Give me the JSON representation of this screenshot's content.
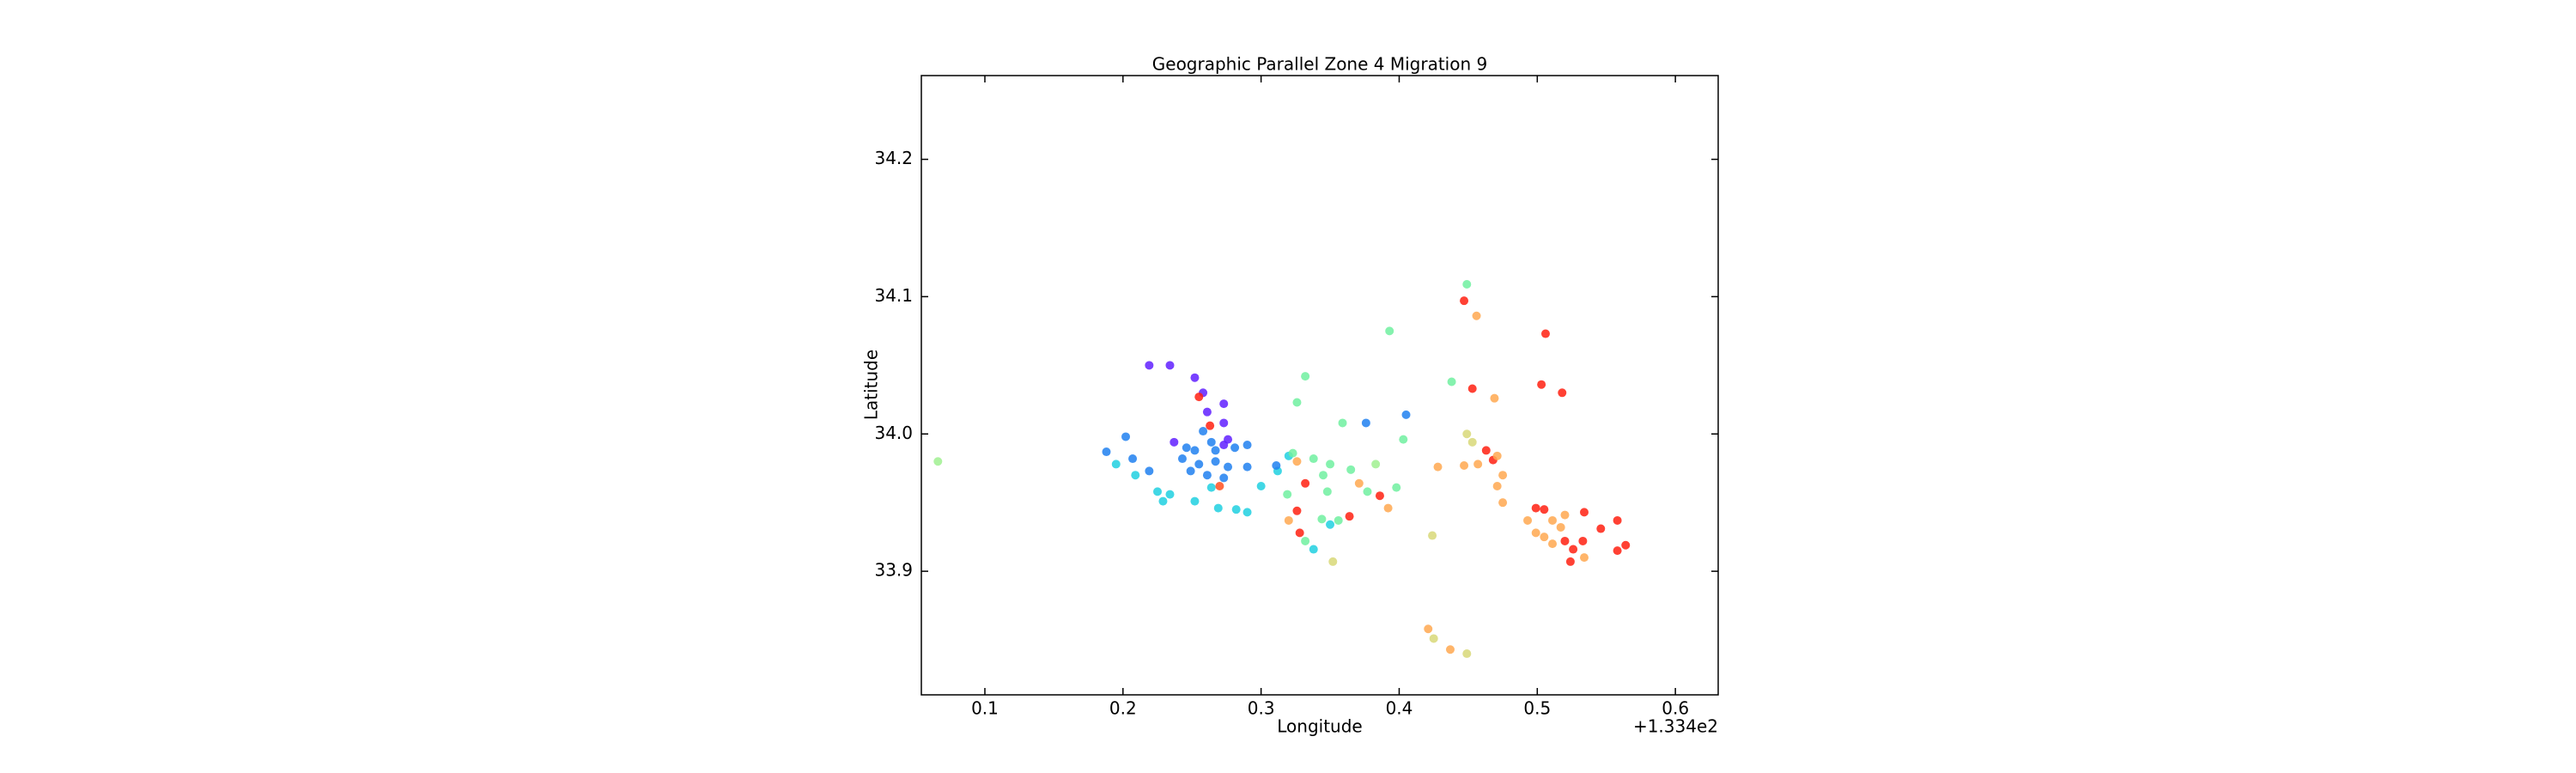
{
  "chart_data": {
    "type": "scatter",
    "title": "Geographic Parallel Zone 4 Migration 9",
    "xlabel": "Longitude",
    "ylabel": "Latitude",
    "x_offset_label": "+1.334e2",
    "xlim": [
      133.454,
      134.031
    ],
    "ylim": [
      33.81,
      34.261
    ],
    "xticks": [
      {
        "value": 133.5,
        "label": "0.1"
      },
      {
        "value": 133.6,
        "label": "0.2"
      },
      {
        "value": 133.7,
        "label": "0.3"
      },
      {
        "value": 133.8,
        "label": "0.4"
      },
      {
        "value": 133.9,
        "label": "0.5"
      },
      {
        "value": 134.0,
        "label": "0.6"
      }
    ],
    "yticks": [
      33.9,
      {
        "value": 34,
        "label": "34.0"
      },
      34.1,
      34.2
    ],
    "x": [
      133.466,
      133.619,
      133.634,
      133.652,
      133.658,
      133.655,
      133.673,
      133.661,
      133.663,
      133.673,
      133.658,
      133.664,
      133.676,
      133.673,
      133.637,
      133.646,
      133.652,
      133.667,
      133.681,
      133.69,
      133.643,
      133.655,
      133.667,
      133.676,
      133.649,
      133.661,
      133.673,
      133.69,
      133.588,
      133.602,
      133.595,
      133.607,
      133.619,
      133.609,
      133.625,
      133.634,
      133.629,
      133.652,
      133.664,
      133.669,
      133.682,
      133.69,
      133.7,
      133.712,
      133.711,
      133.72,
      133.67,
      133.732,
      133.726,
      133.723,
      133.726,
      133.738,
      133.745,
      133.75,
      133.748,
      133.719,
      133.732,
      133.726,
      133.72,
      133.728,
      133.732,
      133.738,
      133.744,
      133.756,
      133.75,
      133.759,
      133.776,
      133.765,
      133.771,
      133.777,
      133.786,
      133.783,
      133.798,
      133.792,
      133.764,
      133.793,
      133.805,
      133.803,
      133.828,
      133.824,
      133.752,
      133.849,
      133.847,
      133.856,
      133.906,
      133.903,
      133.918,
      133.838,
      133.853,
      133.869,
      133.849,
      133.853,
      133.863,
      133.868,
      133.871,
      133.857,
      133.847,
      133.875,
      133.871,
      133.875,
      133.899,
      133.905,
      133.893,
      133.899,
      133.911,
      133.92,
      133.934,
      133.946,
      133.958,
      133.917,
      133.905,
      133.911,
      133.92,
      133.926,
      133.924,
      133.934,
      133.958,
      133.964,
      133.933,
      133.821,
      133.825,
      133.837,
      133.849
    ],
    "y": [
      33.98,
      34.05,
      34.05,
      34.041,
      34.03,
      34.027,
      34.022,
      34.016,
      34.006,
      34.008,
      34.002,
      33.994,
      33.996,
      33.992,
      33.994,
      33.99,
      33.988,
      33.988,
      33.99,
      33.992,
      33.982,
      33.978,
      33.98,
      33.976,
      33.973,
      33.97,
      33.968,
      33.976,
      33.987,
      33.998,
      33.978,
      33.982,
      33.973,
      33.97,
      33.958,
      33.956,
      33.951,
      33.951,
      33.961,
      33.946,
      33.945,
      33.943,
      33.962,
      33.973,
      33.977,
      33.984,
      33.962,
      34.042,
      34.023,
      33.986,
      33.98,
      33.982,
      33.97,
      33.978,
      33.958,
      33.956,
      33.964,
      33.944,
      33.937,
      33.928,
      33.922,
      33.916,
      33.938,
      33.937,
      33.934,
      34.008,
      34.008,
      33.974,
      33.964,
      33.958,
      33.955,
      33.978,
      33.961,
      33.946,
      33.94,
      34.075,
      34.014,
      33.996,
      33.976,
      33.926,
      33.907,
      34.109,
      34.097,
      34.086,
      34.073,
      34.036,
      34.03,
      34.038,
      34.033,
      34.026,
      34.0,
      33.994,
      33.988,
      33.981,
      33.984,
      33.978,
      33.977,
      33.97,
      33.962,
      33.95,
      33.946,
      33.945,
      33.937,
      33.928,
      33.937,
      33.941,
      33.943,
      33.931,
      33.937,
      33.932,
      33.925,
      33.92,
      33.922,
      33.916,
      33.907,
      33.91,
      33.915,
      33.919,
      33.922,
      33.858,
      33.851,
      33.843,
      33.84
    ],
    "colors": [
      "#a0f090",
      "#6020ff",
      "#6020ff",
      "#6020ff",
      "#6020ff",
      "#ff2010",
      "#6020ff",
      "#6020ff",
      "#ff2010",
      "#6020ff",
      "#2080f0",
      "#2080f0",
      "#6020ff",
      "#6020ff",
      "#6020ff",
      "#2080f0",
      "#2080f0",
      "#2080f0",
      "#2080f0",
      "#2080f0",
      "#2080f0",
      "#2080f0",
      "#2080f0",
      "#2080f0",
      "#2080f0",
      "#2080f0",
      "#2080f0",
      "#2080f0",
      "#2080f0",
      "#2080f0",
      "#20d0e0",
      "#2080f0",
      "#2080f0",
      "#20d0e0",
      "#20d0e0",
      "#20d0e0",
      "#20d0e0",
      "#20d0e0",
      "#20d0e0",
      "#20d0e0",
      "#20d0e0",
      "#20d0e0",
      "#20d0e0",
      "#20d0e0",
      "#2080f0",
      "#20d0e0",
      "#ff5020",
      "#70f0a0",
      "#70f0a0",
      "#70f0a0",
      "#ffa850",
      "#70f0a0",
      "#70f0a0",
      "#70f0a0",
      "#70f0a0",
      "#70f0a0",
      "#ff2010",
      "#ff2010",
      "#ffa850",
      "#ff2010",
      "#70f0a0",
      "#20d0e0",
      "#70f0a0",
      "#70f0a0",
      "#20d0e0",
      "#70f0a0",
      "#2080f0",
      "#70f0a0",
      "#ffa850",
      "#70f0a0",
      "#ff2010",
      "#a0f090",
      "#70f0a0",
      "#ffa850",
      "#ff2010",
      "#70f0a0",
      "#2080f0",
      "#70f0a0",
      "#ffa850",
      "#d8d878",
      "#d8d878",
      "#70f0a0",
      "#ff2010",
      "#ffa850",
      "#ff2010",
      "#ff2010",
      "#ff2010",
      "#70f0a0",
      "#ff2010",
      "#ffa850",
      "#d8d878",
      "#d8d878",
      "#ff2010",
      "#ff2010",
      "#ffa850",
      "#ffa850",
      "#ffa850",
      "#ffa850",
      "#ffa850",
      "#ffa850",
      "#ff2010",
      "#ff2010",
      "#ffa850",
      "#ffa850",
      "#ffa850",
      "#ffa850",
      "#ff2010",
      "#ff2010",
      "#ff2010",
      "#ffa850",
      "#ffa850",
      "#ffa850",
      "#ff2010",
      "#ff2010",
      "#ff2010",
      "#ffa850",
      "#ff2010",
      "#ff2010",
      "#ff2010",
      "#ffa850",
      "#d8d878",
      "#ffa850",
      "#d8d878"
    ]
  }
}
